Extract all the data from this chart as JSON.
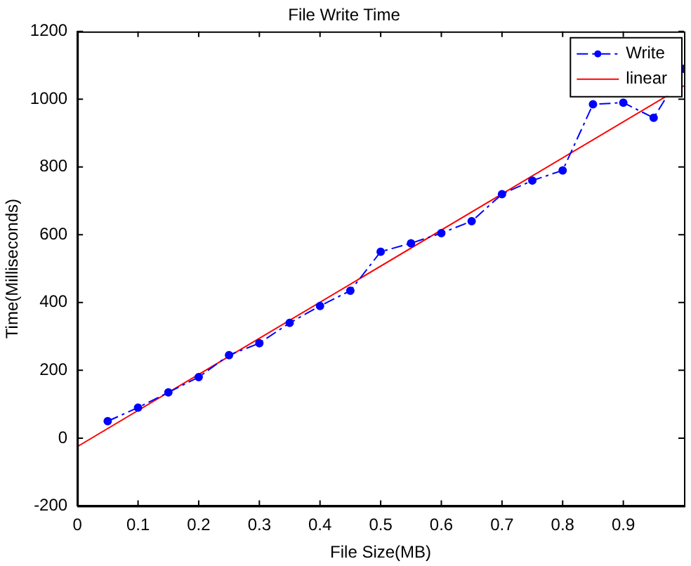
{
  "chart_data": {
    "type": "line",
    "title": "File Write Time",
    "xlabel": "File Size(MB)",
    "ylabel": "Time(Milliseconds)",
    "xlim": [
      0,
      1
    ],
    "xticks": [
      0,
      0.1,
      0.2,
      0.3,
      0.4,
      0.5,
      0.6,
      0.7,
      0.8,
      0.9
    ],
    "ylim": [
      -200,
      1200
    ],
    "yticks": [
      -200,
      0,
      200,
      400,
      600,
      800,
      1000,
      1200
    ],
    "grid": false,
    "legend": "top right",
    "series": [
      {
        "name": "Write",
        "color": "#0000ff",
        "line_style": "dashdot",
        "marker": "circle",
        "x": [
          0.05,
          0.1,
          0.15,
          0.2,
          0.25,
          0.3,
          0.35,
          0.4,
          0.45,
          0.5,
          0.55,
          0.6,
          0.65,
          0.7,
          0.75,
          0.8,
          0.85,
          0.9,
          0.95,
          1.0
        ],
        "values": [
          50,
          90,
          135,
          180,
          245,
          280,
          340,
          390,
          435,
          550,
          575,
          605,
          640,
          720,
          760,
          790,
          985,
          990,
          945,
          1090
        ]
      },
      {
        "name": "linear",
        "color": "#ff0000",
        "line_style": "solid",
        "marker": "none",
        "x": [
          0,
          1
        ],
        "values": [
          -25,
          1040
        ]
      }
    ]
  }
}
